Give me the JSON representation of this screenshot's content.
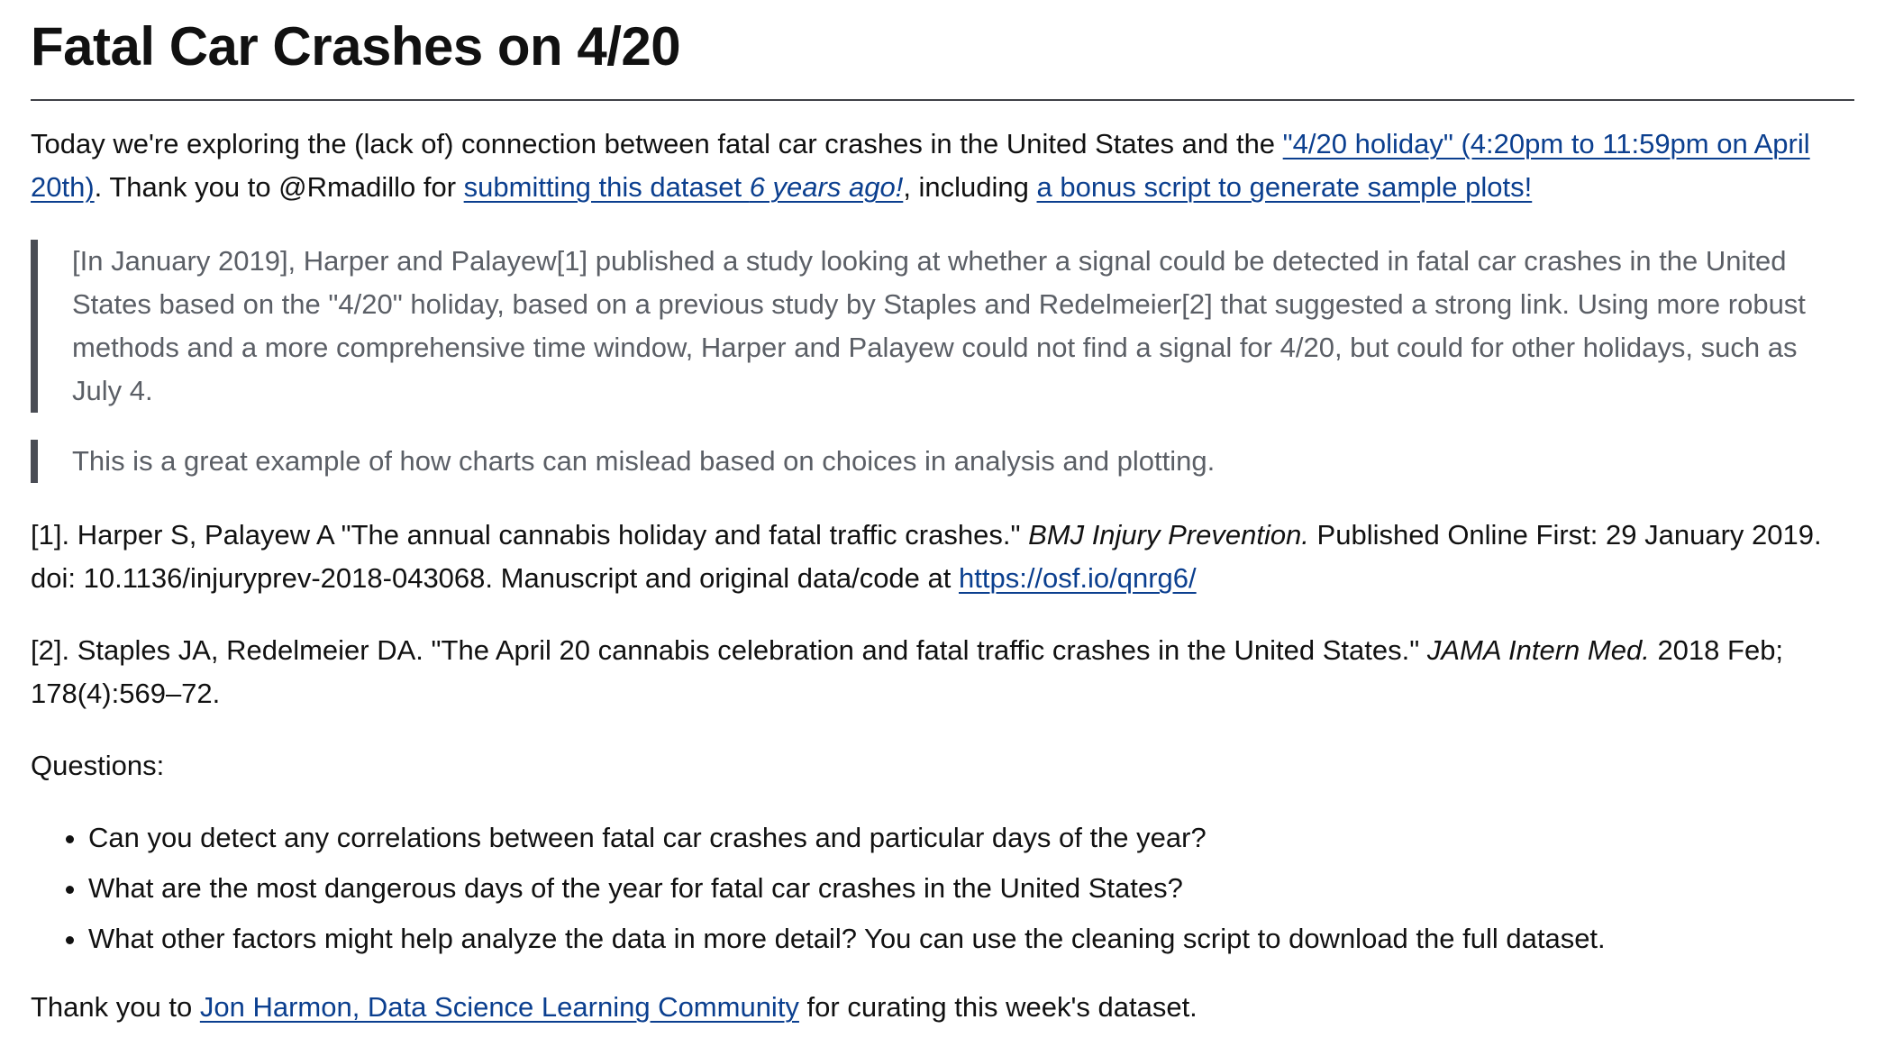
{
  "title": "Fatal Car Crashes on 4/20",
  "intro": {
    "text_1": "Today we're exploring the (lack of) connection between fatal car crashes in the United States and the ",
    "link_holiday": "\"4/20 holiday\" (4:20pm to 11:59pm on April 20th)",
    "text_2": ". Thank you to @Rmadillo for ",
    "link_submit_1": "submitting this dataset ",
    "link_submit_em": "6 years ago!",
    "text_3": ", including ",
    "link_script": "a bonus script to generate sample plots!"
  },
  "quote_1": "[In January 2019], Harper and Palayew[1] published a study looking at whether a signal could be detected in fatal car crashes in the United States based on the \"4/20\" holiday, based on a previous study by Staples and Redelmeier[2] that suggested a strong link. Using more robust methods and a more comprehensive time window, Harper and Palayew could not find a signal for 4/20, but could for other holidays, such as July 4.",
  "quote_2": "This is a great example of how charts can mislead based on choices in analysis and plotting.",
  "ref_1": {
    "text_1": "[1]. Harper S, Palayew A \"The annual cannabis holiday and fatal traffic crashes.\" ",
    "journal": "BMJ Injury Prevention.",
    "text_2": " Published Online First: 29 January 2019. doi: 10.1136/injuryprev-2018-043068. Manuscript and original data/code at ",
    "link": "https://osf.io/qnrg6/"
  },
  "ref_2": {
    "text_1": "[2]. Staples JA, Redelmeier DA. \"The April 20 cannabis celebration and fatal traffic crashes in the United States.\" ",
    "journal": "JAMA Intern Med.",
    "text_2": " 2018 Feb; 178(4):569–72."
  },
  "questions_label": "Questions:",
  "questions": [
    "Can you detect any correlations between fatal car crashes and particular days of the year?",
    "What are the most dangerous days of the year for fatal car crashes in the United States?",
    "What other factors might help analyze the data in more detail? You can use the cleaning script to download the full dataset."
  ],
  "thanks": {
    "text_1": "Thank you to ",
    "link": "Jon Harmon, Data Science Learning Community",
    "text_2": " for curating this week's dataset."
  }
}
